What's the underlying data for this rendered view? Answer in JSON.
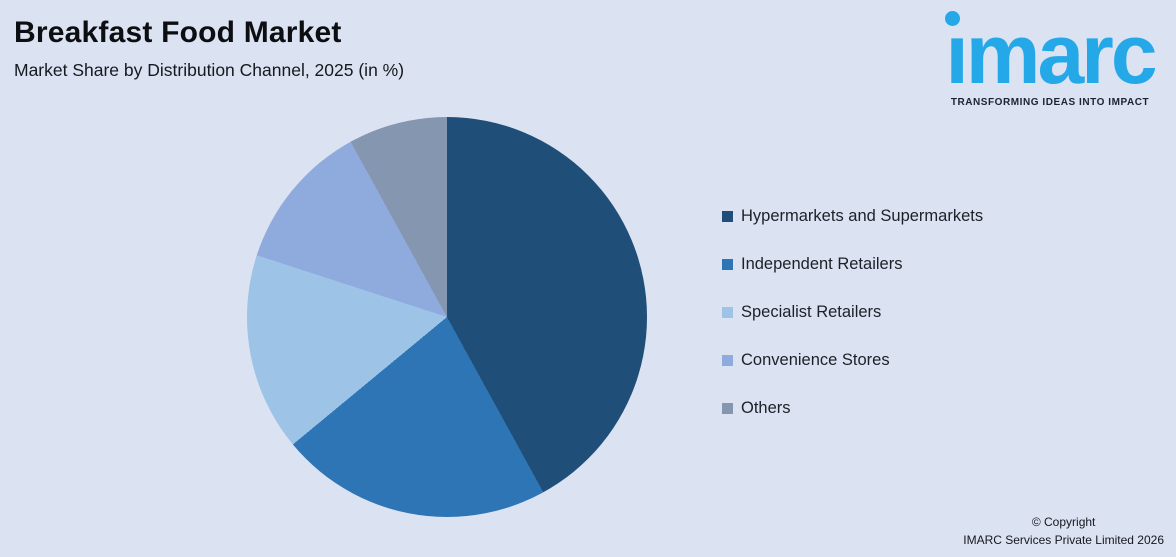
{
  "chart_data": {
    "type": "pie",
    "title": "Breakfast Food Market",
    "subtitle": "Market Share by Distribution Channel, 2025 (in %)",
    "unit": "%",
    "labels": [
      "Hypermarkets and Supermarkets",
      "Independent Retailers",
      "Specialist Retailers",
      "Convenience Stores",
      "Others"
    ],
    "values": [
      42,
      22,
      16,
      12,
      8
    ],
    "colors": [
      "#1F4E79",
      "#2E75B6",
      "#9DC3E6",
      "#8FAADC",
      "#8496B0"
    ],
    "start_angle_deg": 0,
    "direction": "clockwise",
    "legend_position": "right",
    "data_labels": false
  },
  "logo": {
    "wordmark": "ımarc",
    "tagline": "TRANSFORMING IDEAS INTO IMPACT",
    "brand_color": "#25A8E8",
    "tagline_color": "#1B2433"
  },
  "footer": {
    "copyright_line1": "© Copyright",
    "copyright_line2": "IMARC Services Private Limited 2026"
  },
  "colors": {
    "background": "#DBE2F1",
    "title_text": "#0C0E12"
  }
}
